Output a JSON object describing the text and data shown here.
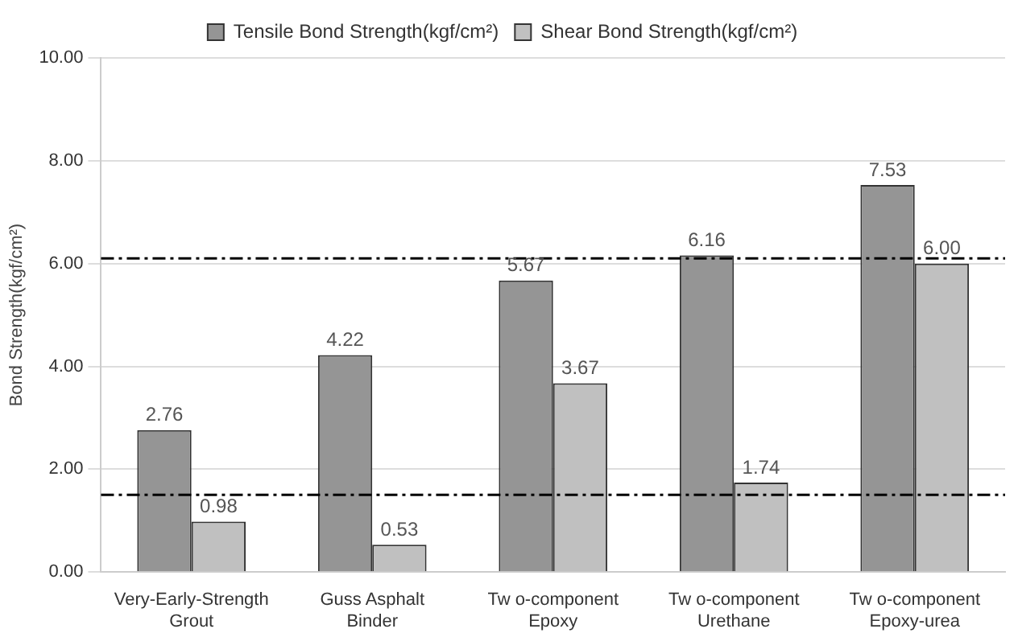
{
  "chart_data": {
    "type": "bar",
    "ylabel": "Bond Strength(kgf/cm²)",
    "categories": [
      [
        "Very-Early-Strength",
        "Grout"
      ],
      [
        "Guss Asphalt",
        "Binder"
      ],
      [
        "Tw o-component",
        "Epoxy"
      ],
      [
        "Tw o-component",
        "Urethane"
      ],
      [
        "Tw o-component",
        "Epoxy-urea"
      ]
    ],
    "series": [
      {
        "name": "Tensile Bond Strength(kgf/cm²)",
        "color": "#959595",
        "values": [
          2.76,
          4.22,
          5.67,
          6.16,
          7.53
        ],
        "value_labels": [
          "2.76",
          "4.22",
          "5.67",
          "6.16",
          "7.53"
        ]
      },
      {
        "name": "Shear Bond Strength(kgf/cm²)",
        "color": "#c0c0c0",
        "values": [
          0.98,
          0.53,
          3.67,
          1.74,
          6.0
        ],
        "value_labels": [
          "0.98",
          "0.53",
          "3.67",
          "1.74",
          "6.00"
        ]
      }
    ],
    "ylim": [
      0,
      10
    ],
    "yticks": [
      {
        "value": 0,
        "label": "0.00"
      },
      {
        "value": 2,
        "label": "2.00"
      },
      {
        "value": 4,
        "label": "4.00"
      },
      {
        "value": 6,
        "label": "6.00"
      },
      {
        "value": 8,
        "label": "8.00"
      },
      {
        "value": 10,
        "label": "10.00"
      }
    ],
    "grid": "y",
    "legend": "top",
    "ref_lines": [
      {
        "axis": "y",
        "value": 6.1,
        "color": "#000000",
        "line_style": "dashdot"
      },
      {
        "axis": "y",
        "value": 1.5,
        "color": "#000000",
        "line_style": "dashdot"
      }
    ]
  }
}
